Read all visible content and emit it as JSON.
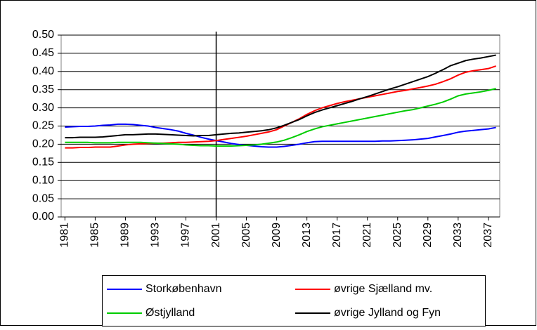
{
  "chart_data": {
    "type": "line",
    "x": [
      1981,
      1982,
      1983,
      1984,
      1985,
      1986,
      1987,
      1988,
      1989,
      1990,
      1991,
      1992,
      1993,
      1994,
      1995,
      1996,
      1997,
      1998,
      1999,
      2000,
      2001,
      2002,
      2003,
      2004,
      2005,
      2006,
      2007,
      2008,
      2009,
      2010,
      2011,
      2012,
      2013,
      2014,
      2015,
      2016,
      2017,
      2018,
      2019,
      2020,
      2021,
      2022,
      2023,
      2024,
      2025,
      2026,
      2027,
      2028,
      2029,
      2030,
      2031,
      2032,
      2033,
      2034,
      2035,
      2036,
      2037,
      2038
    ],
    "xlim": [
      1980.5,
      2038.5
    ],
    "xticks": [
      1981,
      1985,
      1989,
      1993,
      1997,
      2001,
      2005,
      2009,
      2013,
      2017,
      2021,
      2025,
      2029,
      2033,
      2037
    ],
    "ylim": [
      0,
      0.5
    ],
    "yticks": [
      {
        "value": 0,
        "label": "0.00"
      },
      {
        "value": 0.05,
        "label": "0.05"
      },
      {
        "value": 0.1,
        "label": "0.10"
      },
      {
        "value": 0.15,
        "label": "0.15"
      },
      {
        "value": 0.2,
        "label": "0.20"
      },
      {
        "value": 0.25,
        "label": "0.25"
      },
      {
        "value": 0.3,
        "label": "0.30"
      },
      {
        "value": 0.35,
        "label": "0.35"
      },
      {
        "value": 0.4,
        "label": "0.40"
      },
      {
        "value": 0.45,
        "label": "0.45"
      },
      {
        "value": 0.5,
        "label": "0.50"
      }
    ],
    "grid": true,
    "vline": 2001,
    "series": [
      {
        "name": "Storkøbenhavn",
        "color": "#0000ff",
        "values": [
          0.247,
          0.248,
          0.249,
          0.249,
          0.25,
          0.252,
          0.253,
          0.255,
          0.255,
          0.254,
          0.252,
          0.25,
          0.246,
          0.243,
          0.24,
          0.236,
          0.23,
          0.225,
          0.219,
          0.214,
          0.21,
          0.206,
          0.202,
          0.199,
          0.197,
          0.195,
          0.193,
          0.192,
          0.192,
          0.194,
          0.197,
          0.2,
          0.204,
          0.207,
          0.208,
          0.208,
          0.208,
          0.208,
          0.208,
          0.208,
          0.208,
          0.208,
          0.209,
          0.209,
          0.21,
          0.211,
          0.212,
          0.214,
          0.216,
          0.22,
          0.224,
          0.228,
          0.233,
          0.236,
          0.238,
          0.24,
          0.242,
          0.246
        ]
      },
      {
        "name": "øvrige Sjælland mv.",
        "color": "#ff0000",
        "values": [
          0.19,
          0.19,
          0.191,
          0.191,
          0.192,
          0.192,
          0.192,
          0.195,
          0.198,
          0.2,
          0.201,
          0.202,
          0.203,
          0.203,
          0.204,
          0.205,
          0.205,
          0.206,
          0.207,
          0.208,
          0.21,
          0.213,
          0.216,
          0.219,
          0.222,
          0.226,
          0.23,
          0.234,
          0.24,
          0.25,
          0.26,
          0.27,
          0.282,
          0.292,
          0.3,
          0.306,
          0.312,
          0.317,
          0.321,
          0.325,
          0.329,
          0.333,
          0.337,
          0.341,
          0.345,
          0.348,
          0.352,
          0.356,
          0.36,
          0.365,
          0.372,
          0.38,
          0.39,
          0.398,
          0.402,
          0.405,
          0.408,
          0.415
        ]
      },
      {
        "name": "Østjylland",
        "color": "#00cc00",
        "values": [
          0.205,
          0.205,
          0.205,
          0.205,
          0.204,
          0.204,
          0.204,
          0.205,
          0.205,
          0.205,
          0.205,
          0.204,
          0.203,
          0.202,
          0.201,
          0.2,
          0.198,
          0.197,
          0.196,
          0.196,
          0.195,
          0.195,
          0.195,
          0.196,
          0.197,
          0.198,
          0.2,
          0.203,
          0.206,
          0.211,
          0.218,
          0.226,
          0.235,
          0.242,
          0.248,
          0.252,
          0.256,
          0.26,
          0.264,
          0.268,
          0.272,
          0.276,
          0.28,
          0.284,
          0.288,
          0.292,
          0.295,
          0.3,
          0.305,
          0.31,
          0.316,
          0.324,
          0.333,
          0.338,
          0.341,
          0.344,
          0.348,
          0.353
        ]
      },
      {
        "name": "øvrige Jylland og Fyn",
        "color": "#000000",
        "values": [
          0.218,
          0.218,
          0.219,
          0.219,
          0.219,
          0.22,
          0.222,
          0.224,
          0.226,
          0.226,
          0.227,
          0.228,
          0.228,
          0.227,
          0.226,
          0.225,
          0.224,
          0.223,
          0.224,
          0.224,
          0.226,
          0.228,
          0.23,
          0.231,
          0.233,
          0.235,
          0.237,
          0.24,
          0.245,
          0.252,
          0.26,
          0.268,
          0.278,
          0.287,
          0.294,
          0.3,
          0.306,
          0.312,
          0.318,
          0.325,
          0.331,
          0.338,
          0.345,
          0.352,
          0.358,
          0.365,
          0.372,
          0.379,
          0.386,
          0.395,
          0.405,
          0.416,
          0.423,
          0.43,
          0.434,
          0.437,
          0.441,
          0.445
        ]
      }
    ]
  }
}
